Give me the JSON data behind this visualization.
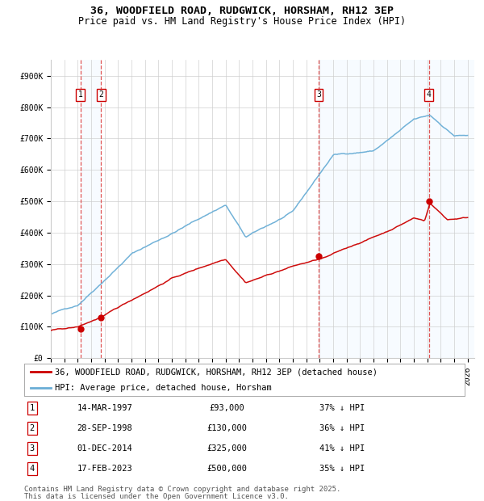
{
  "title": "36, WOODFIELD ROAD, RUDGWICK, HORSHAM, RH12 3EP",
  "subtitle": "Price paid vs. HM Land Registry's House Price Index (HPI)",
  "xlim": [
    1995.0,
    2026.5
  ],
  "ylim": [
    0,
    950000
  ],
  "yticks": [
    0,
    100000,
    200000,
    300000,
    400000,
    500000,
    600000,
    700000,
    800000,
    900000
  ],
  "ytick_labels": [
    "£0",
    "£100K",
    "£200K",
    "£300K",
    "£400K",
    "£500K",
    "£600K",
    "£700K",
    "£800K",
    "£900K"
  ],
  "xticks": [
    1995,
    1996,
    1997,
    1998,
    1999,
    2000,
    2001,
    2002,
    2003,
    2004,
    2005,
    2006,
    2007,
    2008,
    2009,
    2010,
    2011,
    2012,
    2013,
    2014,
    2015,
    2016,
    2017,
    2018,
    2019,
    2020,
    2021,
    2022,
    2023,
    2024,
    2025,
    2026
  ],
  "hpi_color": "#6aaed6",
  "price_color": "#cc0000",
  "vline_color": "#dd4444",
  "shade_color": "#ddeeff",
  "grid_color": "#cccccc",
  "background_color": "#ffffff",
  "sale_events": [
    {
      "num": 1,
      "date": "14-MAR-1997",
      "price": 93000,
      "year": 1997.2,
      "pct": "37% ↓ HPI"
    },
    {
      "num": 2,
      "date": "28-SEP-1998",
      "price": 130000,
      "year": 1998.75,
      "pct": "36% ↓ HPI"
    },
    {
      "num": 3,
      "date": "01-DEC-2014",
      "price": 325000,
      "year": 2014.92,
      "pct": "41% ↓ HPI"
    },
    {
      "num": 4,
      "date": "17-FEB-2023",
      "price": 500000,
      "year": 2023.12,
      "pct": "35% ↓ HPI"
    }
  ],
  "legend_line1": "36, WOODFIELD ROAD, RUDGWICK, HORSHAM, RH12 3EP (detached house)",
  "legend_line2": "HPI: Average price, detached house, Horsham",
  "footnote1": "Contains HM Land Registry data © Crown copyright and database right 2025.",
  "footnote2": "This data is licensed under the Open Government Licence v3.0.",
  "title_fontsize": 9.5,
  "subtitle_fontsize": 8.5,
  "tick_fontsize": 7,
  "legend_fontsize": 7.5,
  "table_fontsize": 7.5,
  "footnote_fontsize": 6.5
}
